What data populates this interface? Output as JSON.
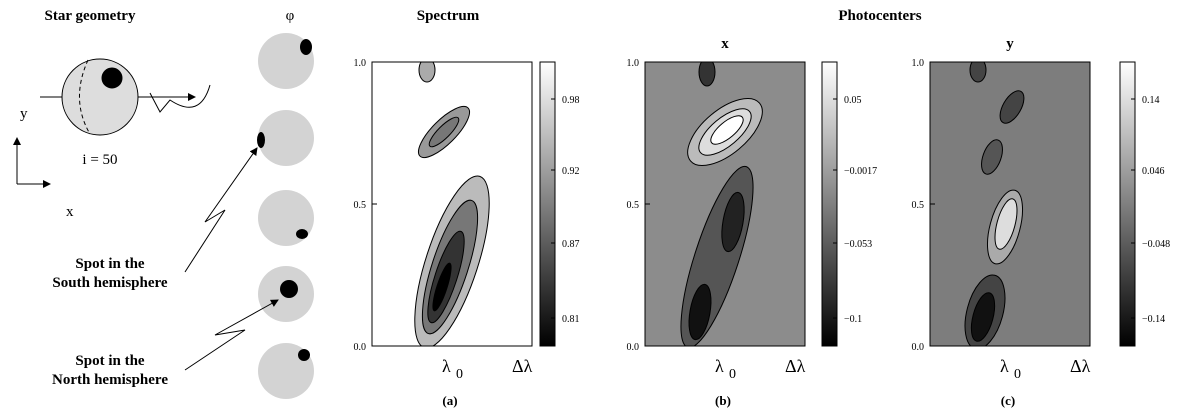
{
  "left": {
    "title": "Star geometry",
    "phi": "φ",
    "inclination": "i = 50",
    "axis_y": "y",
    "axis_x": "x",
    "south_label": [
      "Spot in the",
      "South hemisphere"
    ],
    "north_label": [
      "Spot in the",
      "North hemisphere"
    ]
  },
  "spectrum": {
    "title": "Spectrum"
  },
  "photocenters": {
    "title": "Photocenters"
  },
  "panels": [
    {
      "label": "(a)",
      "yticks": [
        "0.0",
        "0.5",
        "1.0"
      ],
      "x_center": "λ",
      "x_center_sub": "0",
      "x_end": "Δλ",
      "colorbar": [
        "0.98",
        "0.92",
        "0.87",
        "0.81"
      ]
    },
    {
      "title": "x",
      "label": "(b)",
      "yticks": [
        "0.0",
        "0.5",
        "1.0"
      ],
      "x_center": "λ",
      "x_center_sub": "0",
      "x_end": "Δλ",
      "colorbar": [
        "0.05",
        "−0.0017",
        "−0.053",
        "−0.1"
      ]
    },
    {
      "title": "y",
      "label": "(c)",
      "yticks": [
        "0.0",
        "0.5",
        "1.0"
      ],
      "x_center": "λ",
      "x_center_sub": "0",
      "x_end": "Δλ",
      "colorbar": [
        "0.14",
        "0.046",
        "−0.048",
        "−0.14"
      ]
    }
  ]
}
